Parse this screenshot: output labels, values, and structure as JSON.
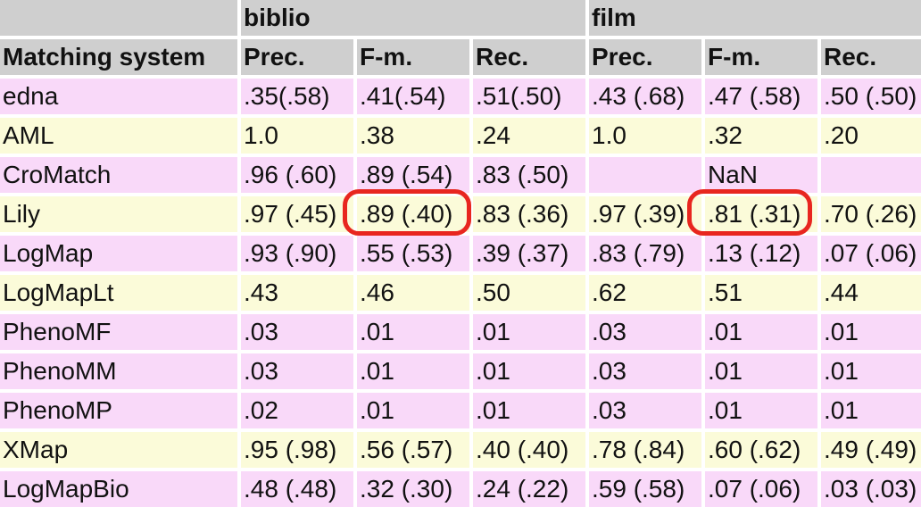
{
  "groups": [
    "biblio",
    "film"
  ],
  "subheaders": [
    "Matching system",
    "Prec.",
    "F-m.",
    "Rec.",
    "Prec.",
    "F-m.",
    "Rec."
  ],
  "rows": [
    [
      "edna",
      ".35(.58)",
      ".41(.54)",
      ".51(.50)",
      ".43 (.68)",
      ".47 (.58)",
      ".50 (.50)"
    ],
    [
      "AML",
      "1.0",
      ".38",
      ".24",
      "1.0",
      ".32",
      ".20"
    ],
    [
      "CroMatch",
      ".96 (.60)",
      ".89 (.54)",
      ".83 (.50)",
      "",
      "NaN",
      ""
    ],
    [
      "Lily",
      ".97 (.45)",
      ".89 (.40)",
      ".83 (.36)",
      ".97 (.39)",
      ".81 (.31)",
      ".70 (.26)"
    ],
    [
      "LogMap",
      ".93 (.90)",
      ".55 (.53)",
      ".39 (.37)",
      ".83 (.79)",
      ".13 (.12)",
      ".07 (.06)"
    ],
    [
      "LogMapLt",
      ".43",
      ".46",
      ".50",
      ".62",
      ".51",
      ".44"
    ],
    [
      "PhenoMF",
      ".03",
      ".01",
      ".01",
      ".03",
      ".01",
      ".01"
    ],
    [
      "PhenoMM",
      ".03",
      ".01",
      ".01",
      ".03",
      ".01",
      ".01"
    ],
    [
      "PhenoMP",
      ".02",
      ".01",
      ".01",
      ".03",
      ".01",
      ".01"
    ],
    [
      "XMap",
      ".95 (.98)",
      ".56 (.57)",
      ".40 (.40)",
      ".78 (.84)",
      ".60 (.62)",
      ".49 (.49)"
    ],
    [
      "LogMapBio",
      ".48 (.48)",
      ".32 (.30)",
      ".24 (.22)",
      ".59 (.58)",
      ".07 (.06)",
      ".03 (.03)"
    ]
  ],
  "row_colors": [
    "#f9d9f9",
    "#fbfbd9"
  ],
  "highlight_color": "#e8261f"
}
